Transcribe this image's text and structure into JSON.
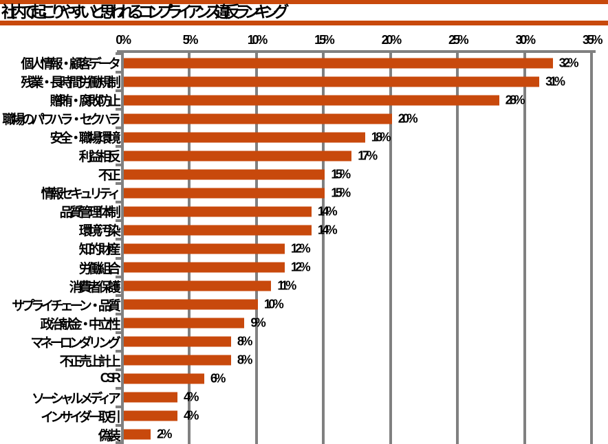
{
  "header": {
    "title": "社内で起こりやすいと思われるコンプライアンス違反ランキング",
    "accent_color": "#C8490C"
  },
  "chart_data": {
    "type": "bar",
    "orientation": "horizontal",
    "title": "社内で起こりやすいと思われるコンプライアンス違反ランキング",
    "categories": [
      "個人情報・顧客データ",
      "残業・長時間労働規制",
      "贈賄・腐敗防止",
      "職場のパワハラ・セクハラ",
      "安全・職場環境",
      "利益相反",
      "不正",
      "情報セキュリティ",
      "品質管理体制",
      "環境汚染",
      "知的財産",
      "労働組合",
      "消費者保護",
      "サプライチェーン・品質",
      "政治献金・中立性",
      "マネーロンダリング",
      "不正売上計上",
      "CSR",
      "ソーシャルメディア",
      "インサイダー取引",
      "偽装"
    ],
    "values": [
      32,
      31,
      28,
      20,
      18,
      17,
      15,
      15,
      14,
      14,
      12,
      12,
      11,
      10,
      9,
      8,
      8,
      6,
      4,
      4,
      2
    ],
    "value_labels": [
      "32%",
      "31%",
      "28%",
      "20%",
      "18%",
      "17%",
      "15%",
      "15%",
      "14%",
      "14%",
      "12%",
      "12%",
      "11%",
      "10%",
      "9%",
      "8%",
      "8%",
      "6%",
      "4%",
      "4%",
      "2%"
    ],
    "x_axis": {
      "tick_labels": [
        "0%",
        "5%",
        "10%",
        "15%",
        "20%",
        "25%",
        "30%",
        "35%"
      ],
      "tick_values": [
        0,
        5,
        10,
        15,
        20,
        25,
        30,
        35
      ],
      "min": 0,
      "max": 35,
      "unit": "%"
    },
    "bar_color": "#C8490C",
    "gridline_color": "#808080",
    "text_color": "#000000",
    "legend_position": "none",
    "grid": "vertical"
  }
}
